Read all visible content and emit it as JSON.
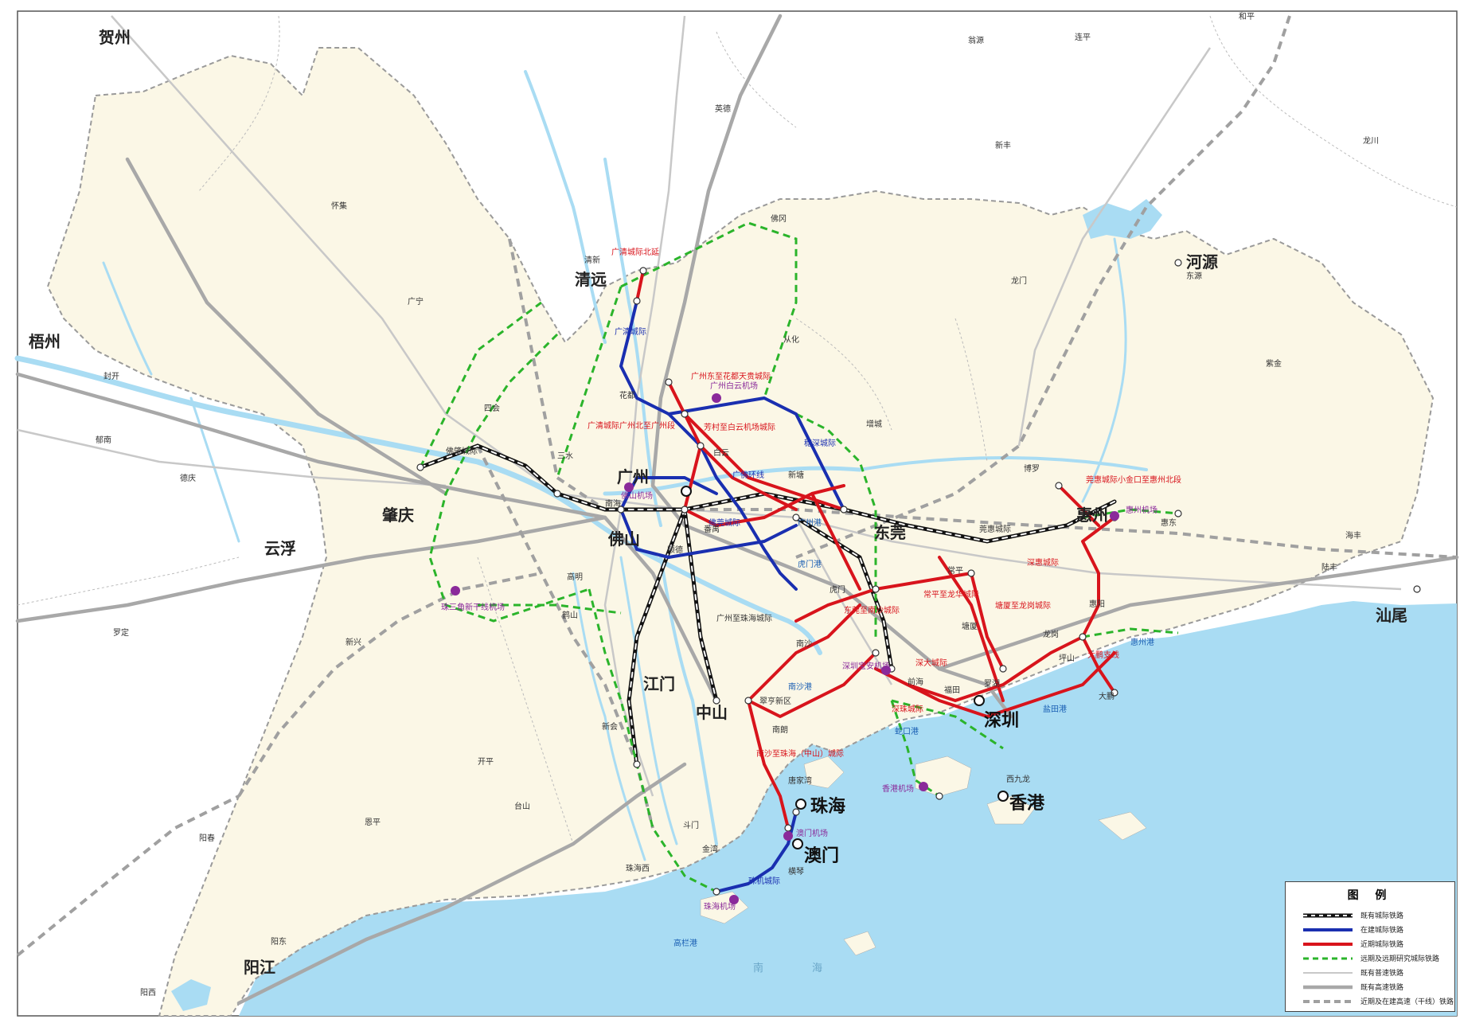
{
  "cities_major": [
    {
      "name": "广州"
    },
    {
      "name": "深圳"
    },
    {
      "name": "香港"
    },
    {
      "name": "澳门"
    },
    {
      "name": "珠海"
    }
  ],
  "cities": [
    {
      "name": "佛山"
    },
    {
      "name": "东莞"
    },
    {
      "name": "惠州"
    },
    {
      "name": "肇庆"
    },
    {
      "name": "中山"
    },
    {
      "name": "江门"
    },
    {
      "name": "清远"
    },
    {
      "name": "河源"
    },
    {
      "name": "云浮"
    },
    {
      "name": "阳江"
    },
    {
      "name": "汕尾"
    },
    {
      "name": "梧州"
    },
    {
      "name": "贺州"
    }
  ],
  "towns": [
    {
      "name": "怀集"
    },
    {
      "name": "广宁"
    },
    {
      "name": "四会"
    },
    {
      "name": "封开"
    },
    {
      "name": "郁南"
    },
    {
      "name": "德庆"
    },
    {
      "name": "罗定"
    },
    {
      "name": "新兴"
    },
    {
      "name": "鹤山"
    },
    {
      "name": "高明"
    },
    {
      "name": "新会"
    },
    {
      "name": "开平"
    },
    {
      "name": "台山"
    },
    {
      "name": "恩平"
    },
    {
      "name": "阳春"
    },
    {
      "name": "阳东"
    },
    {
      "name": "阳西"
    },
    {
      "name": "斗门"
    },
    {
      "name": "金湾"
    },
    {
      "name": "英德"
    },
    {
      "name": "佛冈"
    },
    {
      "name": "从化"
    },
    {
      "name": "增城"
    },
    {
      "name": "龙门"
    },
    {
      "name": "博罗"
    },
    {
      "name": "惠东"
    },
    {
      "name": "惠阳"
    },
    {
      "name": "新丰"
    },
    {
      "name": "连平"
    },
    {
      "name": "龙川"
    },
    {
      "name": "紫金"
    },
    {
      "name": "海丰"
    },
    {
      "name": "陆丰"
    },
    {
      "name": "大鹏"
    },
    {
      "name": "翁源"
    },
    {
      "name": "和平"
    },
    {
      "name": "清新"
    },
    {
      "name": "东源"
    },
    {
      "name": "南沙"
    },
    {
      "name": "番禺"
    },
    {
      "name": "花都"
    },
    {
      "name": "顺德"
    },
    {
      "name": "南海"
    },
    {
      "name": "三水"
    },
    {
      "name": "前海"
    },
    {
      "name": "西九龙"
    },
    {
      "name": "福田"
    },
    {
      "name": "罗湖"
    },
    {
      "name": "翠亨新区"
    },
    {
      "name": "南朗"
    },
    {
      "name": "唐家湾"
    },
    {
      "name": "横琴"
    },
    {
      "name": "珠海西"
    },
    {
      "name": "白云"
    },
    {
      "name": "新塘"
    },
    {
      "name": "虎门"
    },
    {
      "name": "常平"
    },
    {
      "name": "塘厦"
    },
    {
      "name": "龙岗"
    },
    {
      "name": "坪山"
    }
  ],
  "line_labels": [
    {
      "text": "广清城际北延",
      "color": "red"
    },
    {
      "text": "广州东至花都天贵城际",
      "color": "red"
    },
    {
      "text": "广清城际广州北至广州段",
      "color": "red"
    },
    {
      "text": "芳村至白云机场城际",
      "color": "red"
    },
    {
      "text": "莞惠城际小金口至惠州北段",
      "color": "red"
    },
    {
      "text": "深惠城际",
      "color": "red"
    },
    {
      "text": "塘厦至龙岗城际",
      "color": "red"
    },
    {
      "text": "常平至龙华城际",
      "color": "red"
    },
    {
      "text": "深大城际",
      "color": "red"
    },
    {
      "text": "大鹏支线",
      "color": "red"
    },
    {
      "text": "南沙至珠海（中山）城际",
      "color": "red"
    },
    {
      "text": "深珠城际",
      "color": "red"
    },
    {
      "text": "东莞至南沙城际",
      "color": "red"
    },
    {
      "text": "广清城际",
      "color": "blue"
    },
    {
      "text": "佛莞城际",
      "color": "blue"
    },
    {
      "text": "穗深城际",
      "color": "blue"
    },
    {
      "text": "珠机城际",
      "color": "blue"
    },
    {
      "text": "广佛环线",
      "color": "blue"
    },
    {
      "text": "广州至珠海城际",
      "color": "black"
    },
    {
      "text": "佛肇城际",
      "color": "black"
    },
    {
      "text": "莞惠城际",
      "color": "black"
    }
  ],
  "airports": [
    {
      "name": "广州白云机场"
    },
    {
      "name": "深圳宝安机场"
    },
    {
      "name": "香港机场"
    },
    {
      "name": "澳门机场"
    },
    {
      "name": "珠海机场"
    },
    {
      "name": "惠州机场"
    },
    {
      "name": "珠三角新干线机场"
    },
    {
      "name": "佛山机场"
    }
  ],
  "ports": [
    {
      "name": "南沙港"
    },
    {
      "name": "盐田港"
    },
    {
      "name": "惠州港"
    },
    {
      "name": "蛇口港"
    },
    {
      "name": "高栏港"
    },
    {
      "name": "虎门港"
    },
    {
      "name": "广州港"
    }
  ],
  "sea_labels": [
    {
      "name": "南"
    },
    {
      "name": "海"
    }
  ],
  "legend": {
    "title": "图 例",
    "items": [
      {
        "label": "既有城际铁路",
        "style": "black-dash"
      },
      {
        "label": "在建城际铁路",
        "style": "blue"
      },
      {
        "label": "近期城际铁路",
        "style": "red"
      },
      {
        "label": "远期及远期研究城际铁路",
        "style": "green-dash"
      },
      {
        "label": "既有普速铁路",
        "style": "gray-thin"
      },
      {
        "label": "既有高速铁路",
        "style": "gray-thick"
      },
      {
        "label": "近期及在建高速（干线）铁路",
        "style": "gray-dash"
      }
    ]
  },
  "colors": {
    "land_gd": "#fbf7e6",
    "land_other": "#ffffff",
    "sea": "#a9dcf3",
    "river": "#a9dcf3",
    "border_dash": "#9a9a9a",
    "existing_intercity": "#111111",
    "under_construction": "#1a2fb0",
    "near_term": "#d8141c",
    "long_term": "#2bb42b",
    "existing_conventional": "#c8c8c8",
    "existing_highspeed": "#a8a8a8",
    "planned_highspeed": "#a0a0a0"
  }
}
